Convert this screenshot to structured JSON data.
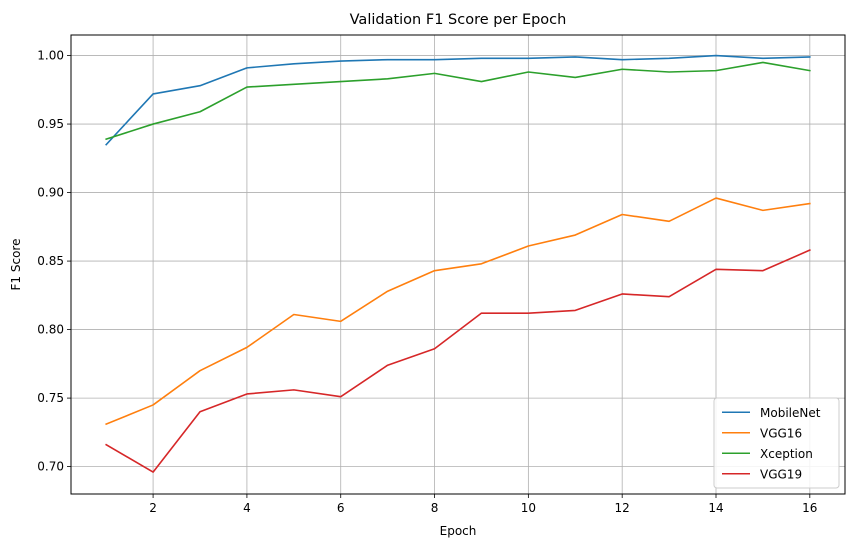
{
  "chart_data": {
    "type": "line",
    "title": "Validation F1 Score per Epoch",
    "xlabel": "Epoch",
    "ylabel": "F1 Score",
    "x": [
      1,
      2,
      3,
      4,
      5,
      6,
      7,
      8,
      9,
      10,
      11,
      12,
      13,
      14,
      15,
      16
    ],
    "xlim": [
      0.25,
      16.75
    ],
    "ylim": [
      0.68,
      1.015
    ],
    "xticks": [
      2,
      4,
      6,
      8,
      10,
      12,
      14,
      16
    ],
    "xtick_labels": [
      "2",
      "4",
      "6",
      "8",
      "10",
      "12",
      "14",
      "16"
    ],
    "yticks": [
      0.7,
      0.75,
      0.8,
      0.85,
      0.9,
      0.95,
      1.0
    ],
    "ytick_labels": [
      "0.70",
      "0.75",
      "0.80",
      "0.85",
      "0.90",
      "0.95",
      "1.00"
    ],
    "grid": true,
    "legend_position": "bottom-right",
    "series": [
      {
        "name": "MobileNet",
        "color": "#1f77b4",
        "values": [
          0.935,
          0.972,
          0.978,
          0.991,
          0.994,
          0.996,
          0.997,
          0.997,
          0.998,
          0.998,
          0.999,
          0.997,
          0.998,
          1.0,
          0.998,
          0.999
        ]
      },
      {
        "name": "VGG16",
        "color": "#ff7f0e",
        "values": [
          0.731,
          0.745,
          0.77,
          0.787,
          0.811,
          0.806,
          0.828,
          0.843,
          0.848,
          0.861,
          0.869,
          0.884,
          0.879,
          0.896,
          0.887,
          0.892
        ]
      },
      {
        "name": "Xception",
        "color": "#2ca02c",
        "values": [
          0.939,
          0.95,
          0.959,
          0.977,
          0.979,
          0.981,
          0.983,
          0.987,
          0.981,
          0.988,
          0.984,
          0.99,
          0.988,
          0.989,
          0.995,
          0.989
        ]
      },
      {
        "name": "VGG19",
        "color": "#d62728",
        "values": [
          0.716,
          0.696,
          0.74,
          0.753,
          0.756,
          0.751,
          0.774,
          0.786,
          0.812,
          0.812,
          0.814,
          0.826,
          0.824,
          0.844,
          0.843,
          0.858
        ]
      }
    ]
  }
}
